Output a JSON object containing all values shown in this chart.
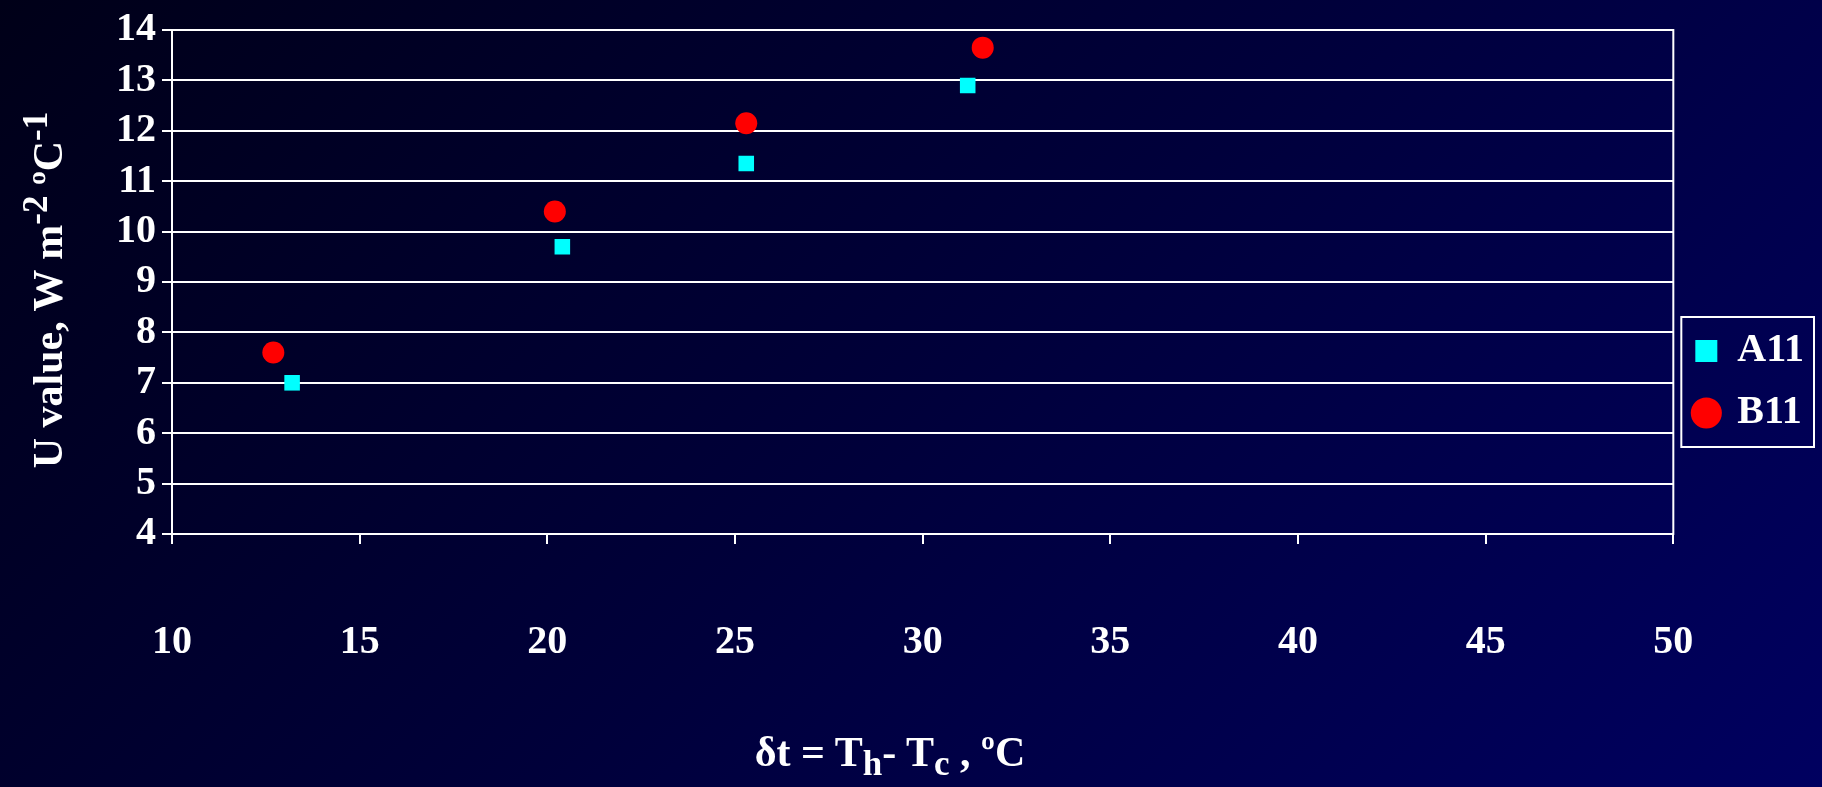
{
  "chart_data": {
    "type": "scatter",
    "xlabel": "δt = T$_{h}$- T$_{c}$ , ºC",
    "ylabel": "U value, W m$^{-2}$ ºC$^{-1}$",
    "xlim": [
      10,
      50
    ],
    "xticks": [
      10,
      15,
      20,
      25,
      30,
      35,
      40,
      45,
      50
    ],
    "ylim": [
      4,
      14
    ],
    "yticks": [
      4,
      5,
      6,
      7,
      8,
      9,
      10,
      11,
      12,
      13,
      14
    ],
    "grid": "y",
    "legend": "right",
    "series": [
      {
        "name": "A11",
        "color": "#00ffff",
        "marker": "square",
        "x": [
          13.2,
          20.4,
          25.3,
          31.2
        ],
        "values": [
          7.0,
          9.7,
          11.35,
          12.9
        ]
      },
      {
        "name": "B11",
        "color": "#ff0000",
        "marker": "circle",
        "x": [
          12.7,
          20.2,
          25.3,
          31.6
        ],
        "values": [
          7.6,
          10.4,
          12.15,
          13.65
        ]
      }
    ]
  }
}
